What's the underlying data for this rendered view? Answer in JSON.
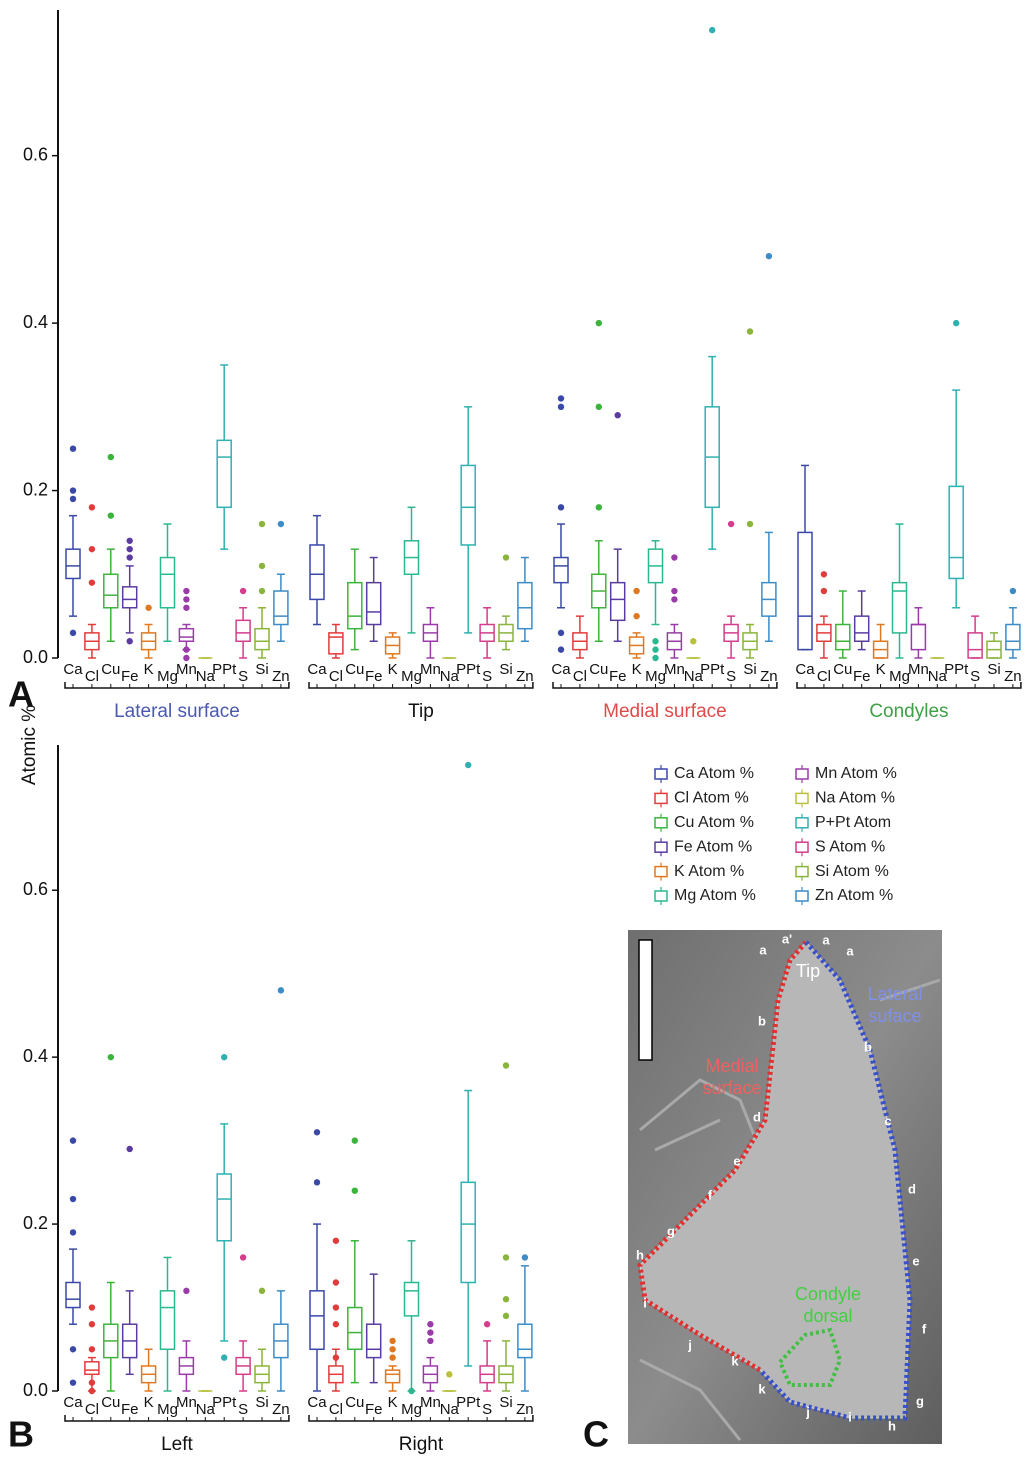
{
  "y_label": "Atomic %",
  "panel_labels": [
    "A",
    "B",
    "C"
  ],
  "chart_data": [
    {
      "type": "box",
      "ylim": [
        0,
        0.774
      ],
      "yticks": [
        {
          "value": 0,
          "label": "0.0"
        },
        0.2,
        0.4,
        0.6
      ],
      "categories": [
        "Ca",
        "Cl",
        "Cu",
        "Fe",
        "K",
        "Mg",
        "Mn",
        "Na",
        "PPt",
        "S",
        "Si",
        "Zn"
      ],
      "groups": [
        {
          "name": "Lateral surface",
          "color": "#4a58b0"
        },
        {
          "name": "Tip",
          "color": "#111111"
        },
        {
          "name": "Medial surface",
          "color": "#e04a4a"
        },
        {
          "name": "Condyles",
          "color": "#3fa046"
        }
      ],
      "series": [
        {
          "color": "#3a48a8",
          "values": [
            [
              0.05,
              0.095,
              0.11,
              0.13,
              0.17
            ],
            [
              0.04,
              0.07,
              0.1,
              0.135,
              0.17
            ],
            [
              0.06,
              0.09,
              0.11,
              0.12,
              0.16
            ],
            [
              0.01,
              0.01,
              0.05,
              0.15,
              0.23
            ]
          ],
          "outliers": [
            [
              0.03,
              0.19,
              0.2,
              0.25
            ],
            [],
            [
              0.01,
              0.03,
              0.18,
              0.3,
              0.31
            ],
            []
          ]
        },
        {
          "color": "#e03c3c",
          "values": [
            [
              0,
              0.01,
              0.02,
              0.03,
              0.04
            ],
            [
              0,
              0.005,
              0.025,
              0.03,
              0.04
            ],
            [
              0,
              0.01,
              0.02,
              0.03,
              0.05
            ],
            [
              0,
              0.02,
              0.03,
              0.04,
              0.05
            ]
          ],
          "outliers": [
            [
              0.09,
              0.13,
              0.18
            ],
            [],
            [],
            [
              0.08,
              0.1
            ]
          ]
        },
        {
          "color": "#3cb43c",
          "values": [
            [
              0.02,
              0.06,
              0.075,
              0.1,
              0.13
            ],
            [
              0.01,
              0.035,
              0.05,
              0.09,
              0.13
            ],
            [
              0.02,
              0.06,
              0.08,
              0.1,
              0.14
            ],
            [
              0,
              0.01,
              0.02,
              0.04,
              0.08
            ]
          ],
          "outliers": [
            [
              0.17,
              0.24
            ],
            [],
            [
              0.18,
              0.3,
              0.4
            ],
            []
          ]
        },
        {
          "color": "#5a3ca0",
          "values": [
            [
              0.03,
              0.06,
              0.07,
              0.085,
              0.11
            ],
            [
              0.02,
              0.04,
              0.055,
              0.09,
              0.12
            ],
            [
              0.02,
              0.045,
              0.07,
              0.09,
              0.13
            ],
            [
              0.01,
              0.02,
              0.03,
              0.05,
              0.08
            ]
          ],
          "outliers": [
            [
              0.02,
              0.12,
              0.13,
              0.14
            ],
            [],
            [
              0.29
            ],
            []
          ]
        },
        {
          "color": "#e07820",
          "values": [
            [
              0,
              0.01,
              0.02,
              0.03,
              0.04
            ],
            [
              0,
              0.005,
              0.015,
              0.025,
              0.03
            ],
            [
              0,
              0.005,
              0.015,
              0.025,
              0.03
            ],
            [
              0,
              0,
              0.01,
              0.02,
              0.04
            ]
          ],
          "outliers": [
            [
              0.06
            ],
            [],
            [
              0.05,
              0.08
            ],
            []
          ]
        },
        {
          "color": "#2ab890",
          "values": [
            [
              0.02,
              0.06,
              0.1,
              0.12,
              0.16
            ],
            [
              0.03,
              0.1,
              0.12,
              0.14,
              0.18
            ],
            [
              0.04,
              0.09,
              0.11,
              0.13,
              0.14
            ],
            [
              0,
              0.03,
              0.08,
              0.09,
              0.16
            ]
          ],
          "outliers": [
            [],
            [],
            [
              0,
              0.01,
              0.02
            ],
            []
          ]
        },
        {
          "color": "#9a3ca8",
          "values": [
            [
              0.01,
              0.02,
              0.025,
              0.035,
              0.04
            ],
            [
              0,
              0.02,
              0.03,
              0.04,
              0.06
            ],
            [
              0,
              0.01,
              0.02,
              0.03,
              0.04
            ],
            [
              0,
              0.01,
              0.04,
              0.04,
              0.06
            ]
          ],
          "outliers": [
            [
              0,
              0.01,
              0.06,
              0.07,
              0.08
            ],
            [],
            [
              0.07,
              0.08,
              0.12
            ],
            []
          ]
        },
        {
          "color": "#b8c03c",
          "values": [
            [
              0,
              0,
              0,
              0,
              0
            ],
            [
              0,
              0,
              0,
              0,
              0
            ],
            [
              0,
              0,
              0,
              0,
              0
            ],
            [
              0,
              0,
              0,
              0,
              0
            ]
          ],
          "outliers": [
            [],
            [],
            [
              0.02
            ],
            []
          ]
        },
        {
          "color": "#30b0b0",
          "values": [
            [
              0.13,
              0.18,
              0.24,
              0.26,
              0.35
            ],
            [
              0.03,
              0.135,
              0.18,
              0.23,
              0.3
            ],
            [
              0.13,
              0.18,
              0.24,
              0.3,
              0.36
            ],
            [
              0.06,
              0.095,
              0.12,
              0.205,
              0.32
            ]
          ],
          "outliers": [
            [],
            [],
            [
              0.75
            ],
            [
              0.4
            ]
          ]
        },
        {
          "color": "#d43c8c",
          "values": [
            [
              0,
              0.02,
              0.03,
              0.045,
              0.06
            ],
            [
              0,
              0.02,
              0.03,
              0.04,
              0.06
            ],
            [
              0,
              0.02,
              0.03,
              0.04,
              0.05
            ],
            [
              0,
              0,
              0.01,
              0.03,
              0.05
            ]
          ],
          "outliers": [
            [
              0.08
            ],
            [],
            [
              0.16
            ],
            []
          ]
        },
        {
          "color": "#8ab43c",
          "values": [
            [
              0,
              0.01,
              0.02,
              0.035,
              0.06
            ],
            [
              0.01,
              0.02,
              0.03,
              0.04,
              0.05
            ],
            [
              0,
              0.01,
              0.02,
              0.03,
              0.04
            ],
            [
              0,
              0,
              0.01,
              0.02,
              0.03
            ]
          ],
          "outliers": [
            [
              0.08,
              0.11,
              0.16
            ],
            [
              0.12
            ],
            [
              0.16,
              0.39
            ],
            []
          ]
        },
        {
          "color": "#3c8cc8",
          "values": [
            [
              0.02,
              0.04,
              0.05,
              0.08,
              0.1
            ],
            [
              0.02,
              0.035,
              0.06,
              0.09,
              0.12
            ],
            [
              0.02,
              0.05,
              0.07,
              0.09,
              0.15
            ],
            [
              0,
              0.01,
              0.02,
              0.04,
              0.06
            ]
          ],
          "outliers": [
            [
              0.16
            ],
            [],
            [
              0.48
            ],
            [
              0.08
            ]
          ]
        }
      ]
    },
    {
      "type": "box",
      "ylim": [
        0,
        0.774
      ],
      "yticks": [
        {
          "value": 0,
          "label": "0.0"
        },
        0.2,
        0.4,
        0.6
      ],
      "categories": [
        "Ca",
        "Cl",
        "Cu",
        "Fe",
        "K",
        "Mg",
        "Mn",
        "Na",
        "PPt",
        "S",
        "Si",
        "Zn"
      ],
      "groups": [
        {
          "name": "Left",
          "color": "#111111"
        },
        {
          "name": "Right",
          "color": "#111111"
        }
      ],
      "series": [
        {
          "name": "Ca Atom %",
          "color": "#3a48a8",
          "values": [
            [
              0.08,
              0.1,
              0.11,
              0.13,
              0.17
            ],
            [
              0,
              0.05,
              0.09,
              0.12,
              0.2
            ]
          ],
          "outliers": [
            [
              0.01,
              0.05,
              0.19,
              0.23,
              0.3
            ],
            [
              0.25,
              0.31
            ]
          ]
        },
        {
          "name": "Cl Atom %",
          "color": "#e03c3c",
          "values": [
            [
              0,
              0.02,
              0.025,
              0.035,
              0.04
            ],
            [
              0,
              0.01,
              0.02,
              0.03,
              0.05
            ]
          ],
          "outliers": [
            [
              0,
              0.01,
              0.05,
              0.08,
              0.1
            ],
            [
              0.04,
              0.08,
              0.1,
              0.13,
              0.18
            ]
          ]
        },
        {
          "name": "Cu Atom %",
          "color": "#3cb43c",
          "values": [
            [
              0,
              0.04,
              0.06,
              0.08,
              0.13
            ],
            [
              0.01,
              0.05,
              0.07,
              0.1,
              0.18
            ]
          ],
          "outliers": [
            [
              0.4
            ],
            [
              0.24,
              0.3
            ]
          ]
        },
        {
          "name": "Fe Atom %",
          "color": "#5a3ca0",
          "values": [
            [
              0.02,
              0.04,
              0.06,
              0.08,
              0.12
            ],
            [
              0.01,
              0.04,
              0.05,
              0.08,
              0.14
            ]
          ],
          "outliers": [
            [
              0.29
            ],
            []
          ]
        },
        {
          "name": "K Atom %",
          "color": "#e07820",
          "values": [
            [
              0,
              0.01,
              0.02,
              0.03,
              0.05
            ],
            [
              0,
              0.01,
              0.02,
              0.025,
              0.03
            ]
          ],
          "outliers": [
            [],
            [
              0.04,
              0.05,
              0.06
            ]
          ]
        },
        {
          "name": "Mg Atom %",
          "color": "#2ab890",
          "values": [
            [
              0,
              0.05,
              0.1,
              0.12,
              0.16
            ],
            [
              0,
              0.09,
              0.12,
              0.13,
              0.18
            ]
          ],
          "outliers": [
            [],
            [
              0
            ]
          ]
        },
        {
          "name": "Mn Atom %",
          "color": "#9a3ca8",
          "values": [
            [
              0,
              0.02,
              0.03,
              0.04,
              0.06
            ],
            [
              0,
              0.01,
              0.02,
              0.03,
              0.04
            ]
          ],
          "outliers": [
            [
              0.12
            ],
            [
              0.06,
              0.07,
              0.08
            ]
          ]
        },
        {
          "name": "Na Atom %",
          "color": "#b8c03c",
          "values": [
            [
              0,
              0,
              0,
              0,
              0
            ],
            [
              0,
              0,
              0,
              0,
              0
            ]
          ],
          "outliers": [
            [],
            [
              0.02
            ]
          ]
        },
        {
          "name": "P+Pt Atom",
          "color": "#30b0b0",
          "values": [
            [
              0.06,
              0.18,
              0.23,
              0.26,
              0.32
            ],
            [
              0.03,
              0.13,
              0.2,
              0.25,
              0.36
            ]
          ],
          "outliers": [
            [
              0.04,
              0.4
            ],
            [
              0.75
            ]
          ]
        },
        {
          "name": "S Atom %",
          "color": "#d43c8c",
          "values": [
            [
              0,
              0.02,
              0.03,
              0.04,
              0.06
            ],
            [
              0,
              0.01,
              0.02,
              0.03,
              0.06
            ]
          ],
          "outliers": [
            [
              0.16
            ],
            [
              0.08
            ]
          ]
        },
        {
          "name": "Si Atom %",
          "color": "#8ab43c",
          "values": [
            [
              0,
              0.01,
              0.02,
              0.03,
              0.05
            ],
            [
              0,
              0.01,
              0.02,
              0.03,
              0.06
            ]
          ],
          "outliers": [
            [
              0.12
            ],
            [
              0.09,
              0.11,
              0.16,
              0.39
            ]
          ]
        },
        {
          "name": "Zn Atom %",
          "color": "#3c8cc8",
          "values": [
            [
              0,
              0.04,
              0.06,
              0.08,
              0.12
            ],
            [
              0,
              0.04,
              0.05,
              0.08,
              0.15
            ]
          ],
          "outliers": [
            [
              0.48
            ],
            [
              0.16
            ]
          ]
        }
      ]
    }
  ],
  "micrograph": {
    "region_labels": [
      [
        "Tip"
      ],
      [
        "Lateral",
        "suface"
      ],
      [
        "Medial",
        "surface"
      ],
      [
        "Condyle",
        "dorsal"
      ]
    ],
    "point_labels": [
      "a'",
      "a",
      "a",
      "a",
      "b",
      "b",
      "c",
      "d",
      "d",
      "e",
      "e",
      "f",
      "f",
      "g",
      "g",
      "h",
      "h",
      "i",
      "i",
      "j",
      "j",
      "k",
      "k"
    ]
  }
}
